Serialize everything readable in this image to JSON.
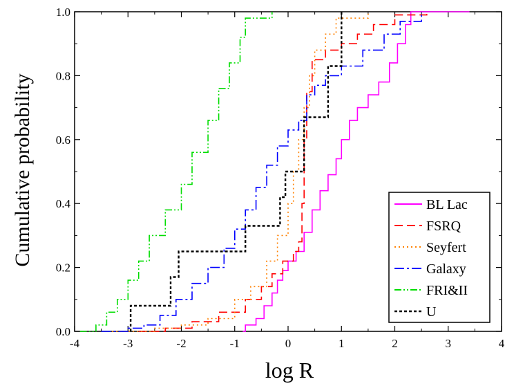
{
  "chart_data": {
    "type": "line",
    "title": "",
    "xlabel": "log R",
    "ylabel": "Cumulative probability",
    "xlim": [
      -4,
      4
    ],
    "ylim": [
      0.0,
      1.0
    ],
    "x_ticks": [
      "-4",
      "-3",
      "-2",
      "-1",
      "0",
      "1",
      "2",
      "3",
      "4"
    ],
    "y_ticks": [
      "0.0",
      "0.2",
      "0.4",
      "0.6",
      "0.8",
      "1.0"
    ],
    "grid": false,
    "legend_position": "lower-right",
    "series": [
      {
        "name": "BL Lac",
        "color": "#ff00ff",
        "dash": "solid",
        "step": true,
        "points": [
          [
            -0.85,
            0.0
          ],
          [
            -0.8,
            0.02
          ],
          [
            -0.6,
            0.04
          ],
          [
            -0.45,
            0.08
          ],
          [
            -0.3,
            0.12
          ],
          [
            -0.2,
            0.16
          ],
          [
            -0.1,
            0.19
          ],
          [
            0.0,
            0.22
          ],
          [
            0.15,
            0.25
          ],
          [
            0.3,
            0.31
          ],
          [
            0.45,
            0.38
          ],
          [
            0.6,
            0.44
          ],
          [
            0.75,
            0.49
          ],
          [
            0.9,
            0.54
          ],
          [
            1.0,
            0.6
          ],
          [
            1.15,
            0.66
          ],
          [
            1.3,
            0.7
          ],
          [
            1.5,
            0.74
          ],
          [
            1.7,
            0.78
          ],
          [
            1.9,
            0.84
          ],
          [
            2.05,
            0.9
          ],
          [
            2.2,
            0.96
          ],
          [
            2.3,
            1.0
          ],
          [
            3.4,
            1.0
          ]
        ]
      },
      {
        "name": "FSRQ",
        "color": "#ff0000",
        "dash": "12,6",
        "step": true,
        "points": [
          [
            -2.8,
            0.0
          ],
          [
            -2.3,
            0.01
          ],
          [
            -1.8,
            0.03
          ],
          [
            -1.3,
            0.06
          ],
          [
            -0.8,
            0.1
          ],
          [
            -0.5,
            0.14
          ],
          [
            -0.3,
            0.18
          ],
          [
            -0.1,
            0.22
          ],
          [
            0.1,
            0.25
          ],
          [
            0.2,
            0.28
          ],
          [
            0.26,
            0.4
          ],
          [
            0.3,
            0.6
          ],
          [
            0.35,
            0.75
          ],
          [
            0.45,
            0.85
          ],
          [
            0.7,
            0.88
          ],
          [
            1.0,
            0.9
          ],
          [
            1.3,
            0.93
          ],
          [
            1.6,
            0.96
          ],
          [
            2.0,
            0.99
          ],
          [
            2.6,
            1.0
          ]
        ]
      },
      {
        "name": "Seyfert",
        "color": "#ff8000",
        "dash": "2,4",
        "step": true,
        "points": [
          [
            -3.3,
            0.0
          ],
          [
            -2.5,
            0.01
          ],
          [
            -2.0,
            0.02
          ],
          [
            -1.5,
            0.04
          ],
          [
            -1.0,
            0.1
          ],
          [
            -0.7,
            0.14
          ],
          [
            -0.4,
            0.22
          ],
          [
            -0.2,
            0.3
          ],
          [
            0.0,
            0.4
          ],
          [
            0.1,
            0.5
          ],
          [
            0.2,
            0.6
          ],
          [
            0.3,
            0.7
          ],
          [
            0.4,
            0.8
          ],
          [
            0.5,
            0.88
          ],
          [
            0.7,
            0.93
          ],
          [
            0.9,
            0.98
          ],
          [
            1.5,
            1.0
          ]
        ]
      },
      {
        "name": "Galaxy",
        "color": "#0000ff",
        "dash": "14,4,3,4",
        "step": true,
        "points": [
          [
            -3.5,
            0.0
          ],
          [
            -3.0,
            0.01
          ],
          [
            -2.7,
            0.02
          ],
          [
            -2.4,
            0.05
          ],
          [
            -2.1,
            0.1
          ],
          [
            -1.8,
            0.15
          ],
          [
            -1.5,
            0.2
          ],
          [
            -1.2,
            0.26
          ],
          [
            -1.0,
            0.32
          ],
          [
            -0.8,
            0.38
          ],
          [
            -0.6,
            0.45
          ],
          [
            -0.4,
            0.52
          ],
          [
            -0.2,
            0.58
          ],
          [
            0.0,
            0.63
          ],
          [
            0.2,
            0.66
          ],
          [
            0.35,
            0.74
          ],
          [
            0.5,
            0.77
          ],
          [
            0.7,
            0.8
          ],
          [
            1.0,
            0.83
          ],
          [
            1.4,
            0.88
          ],
          [
            1.8,
            0.93
          ],
          [
            2.1,
            0.97
          ],
          [
            2.5,
            1.0
          ]
        ]
      },
      {
        "name": "FRI&II",
        "color": "#00dd00",
        "dash": "10,3,2,3,2,3",
        "step": true,
        "points": [
          [
            -3.9,
            0.0
          ],
          [
            -3.6,
            0.02
          ],
          [
            -3.4,
            0.06
          ],
          [
            -3.2,
            0.1
          ],
          [
            -3.0,
            0.16
          ],
          [
            -2.8,
            0.22
          ],
          [
            -2.6,
            0.3
          ],
          [
            -2.3,
            0.38
          ],
          [
            -2.0,
            0.46
          ],
          [
            -1.8,
            0.56
          ],
          [
            -1.5,
            0.66
          ],
          [
            -1.3,
            0.76
          ],
          [
            -1.1,
            0.84
          ],
          [
            -0.9,
            0.92
          ],
          [
            -0.8,
            0.98
          ],
          [
            -0.3,
            0.99
          ],
          [
            -0.3,
            1.0
          ]
        ]
      },
      {
        "name": "U",
        "color": "#000000",
        "dash": "4,3",
        "step": true,
        "points": [
          [
            -2.95,
            0.0
          ],
          [
            -2.95,
            0.08
          ],
          [
            -2.2,
            0.08
          ],
          [
            -2.2,
            0.17
          ],
          [
            -2.05,
            0.17
          ],
          [
            -2.05,
            0.25
          ],
          [
            -0.8,
            0.25
          ],
          [
            -0.8,
            0.33
          ],
          [
            -0.15,
            0.33
          ],
          [
            -0.15,
            0.42
          ],
          [
            -0.05,
            0.42
          ],
          [
            -0.05,
            0.5
          ],
          [
            0.3,
            0.5
          ],
          [
            0.3,
            0.67
          ],
          [
            0.75,
            0.67
          ],
          [
            0.75,
            0.83
          ],
          [
            1.0,
            0.83
          ],
          [
            1.0,
            1.0
          ]
        ]
      }
    ]
  }
}
